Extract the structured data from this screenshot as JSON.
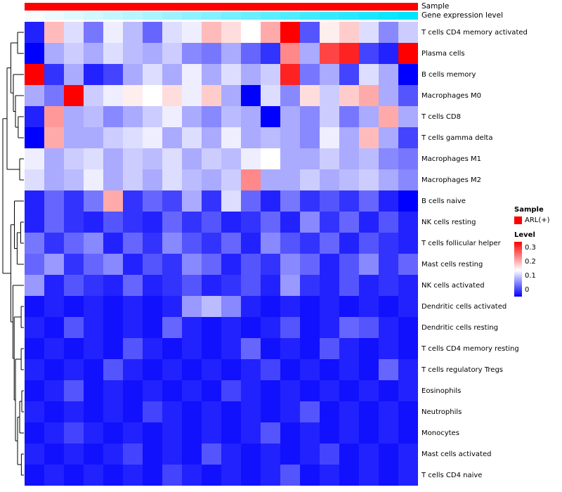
{
  "annotations": {
    "sample_label": "Sample",
    "expression_label": "Gene expression level",
    "sample_color": "#FE0000",
    "expression_low_color": "#F7FCFF",
    "expression_high_color": "#00E5FE",
    "expression_values": [
      0.0,
      0.05,
      0.1,
      0.16,
      0.21,
      0.26,
      0.32,
      0.37,
      0.42,
      0.47,
      0.53,
      0.58,
      0.63,
      0.68,
      0.74,
      0.79,
      0.84,
      0.89,
      0.95,
      1.0
    ]
  },
  "legend": {
    "sample_title": "Sample",
    "sample_items": [
      {
        "label": "ARL(+)",
        "color": "#FE0000"
      }
    ],
    "level_title": "Level",
    "level_ticks": [
      "0.3",
      "0.2",
      "0.1",
      "0"
    ]
  },
  "chart_data": {
    "type": "heatmap",
    "title": "",
    "rows": [
      "T cells CD4 memory activated",
      "Plasma cells",
      "B cells memory",
      "Macrophages M0",
      "T cells CD8",
      "T cells gamma delta",
      "Macrophages M1",
      "Macrophages M2",
      "B cells naive",
      "NK cells resting",
      "T cells follicular helper",
      "Mast cells resting",
      "NK cells activated",
      "Dendritic cells activated",
      "Dendritic cells resting",
      "T cells CD4 memory resting",
      "T cells regulatory  Tregs",
      "Eosinophils",
      "Neutrophils",
      "Monocytes",
      "Mast cells activated",
      "T cells CD4 naive"
    ],
    "n_columns": 20,
    "vmin": 0,
    "vmax": 0.3,
    "colormap": {
      "low": "#0000FE",
      "mid": "#FFFFFF",
      "high": "#FE0000"
    },
    "values": [
      [
        0.02,
        0.19,
        0.13,
        0.07,
        0.14,
        0.11,
        0.06,
        0.13,
        0.14,
        0.19,
        0.17,
        0.15,
        0.2,
        0.3,
        0.05,
        0.16,
        0.18,
        0.13,
        0.08,
        0.12
      ],
      [
        0.0,
        0.1,
        0.12,
        0.1,
        0.13,
        0.11,
        0.1,
        0.12,
        0.08,
        0.07,
        0.1,
        0.06,
        0.03,
        0.22,
        0.1,
        0.26,
        0.28,
        0.04,
        0.02,
        0.3
      ],
      [
        0.3,
        0.03,
        0.1,
        0.02,
        0.04,
        0.1,
        0.13,
        0.1,
        0.14,
        0.1,
        0.13,
        0.1,
        0.12,
        0.28,
        0.07,
        0.1,
        0.04,
        0.13,
        0.1,
        0.0
      ],
      [
        0.1,
        0.07,
        0.3,
        0.12,
        0.14,
        0.16,
        0.15,
        0.17,
        0.14,
        0.18,
        0.1,
        0.0,
        0.13,
        0.08,
        0.17,
        0.12,
        0.18,
        0.2,
        0.1,
        0.05
      ],
      [
        0.02,
        0.21,
        0.1,
        0.11,
        0.08,
        0.1,
        0.12,
        0.14,
        0.1,
        0.08,
        0.11,
        0.1,
        0.0,
        0.1,
        0.08,
        0.12,
        0.07,
        0.1,
        0.2,
        0.1
      ],
      [
        0.0,
        0.2,
        0.1,
        0.1,
        0.12,
        0.13,
        0.14,
        0.1,
        0.13,
        0.1,
        0.14,
        0.1,
        0.11,
        0.1,
        0.08,
        0.14,
        0.1,
        0.19,
        0.1,
        0.04
      ],
      [
        0.14,
        0.1,
        0.12,
        0.13,
        0.1,
        0.12,
        0.11,
        0.13,
        0.1,
        0.12,
        0.11,
        0.14,
        0.15,
        0.1,
        0.1,
        0.12,
        0.1,
        0.11,
        0.08,
        0.07
      ],
      [
        0.13,
        0.1,
        0.11,
        0.14,
        0.1,
        0.12,
        0.1,
        0.13,
        0.11,
        0.1,
        0.12,
        0.22,
        0.1,
        0.1,
        0.12,
        0.1,
        0.11,
        0.12,
        0.1,
        0.08
      ],
      [
        0.02,
        0.06,
        0.03,
        0.07,
        0.2,
        0.03,
        0.06,
        0.04,
        0.1,
        0.03,
        0.13,
        0.06,
        0.02,
        0.07,
        0.03,
        0.05,
        0.03,
        0.06,
        0.02,
        0.0
      ],
      [
        0.02,
        0.06,
        0.03,
        0.02,
        0.05,
        0.03,
        0.02,
        0.06,
        0.03,
        0.05,
        0.02,
        0.03,
        0.06,
        0.02,
        0.08,
        0.03,
        0.06,
        0.02,
        0.05,
        0.02
      ],
      [
        0.07,
        0.03,
        0.06,
        0.08,
        0.02,
        0.06,
        0.03,
        0.08,
        0.05,
        0.03,
        0.06,
        0.02,
        0.08,
        0.05,
        0.03,
        0.06,
        0.02,
        0.05,
        0.03,
        0.02
      ],
      [
        0.06,
        0.09,
        0.03,
        0.06,
        0.08,
        0.02,
        0.05,
        0.03,
        0.08,
        0.06,
        0.02,
        0.05,
        0.03,
        0.08,
        0.06,
        0.02,
        0.05,
        0.08,
        0.03,
        0.06
      ],
      [
        0.09,
        0.02,
        0.05,
        0.03,
        0.02,
        0.06,
        0.02,
        0.03,
        0.05,
        0.02,
        0.03,
        0.05,
        0.02,
        0.09,
        0.03,
        0.02,
        0.05,
        0.02,
        0.03,
        0.02
      ],
      [
        0.01,
        0.02,
        0.01,
        0.02,
        0.01,
        0.02,
        0.01,
        0.02,
        0.09,
        0.11,
        0.08,
        0.02,
        0.01,
        0.02,
        0.01,
        0.02,
        0.01,
        0.02,
        0.01,
        0.02
      ],
      [
        0.02,
        0.01,
        0.05,
        0.02,
        0.01,
        0.02,
        0.01,
        0.06,
        0.02,
        0.01,
        0.02,
        0.01,
        0.02,
        0.05,
        0.01,
        0.02,
        0.06,
        0.05,
        0.02,
        0.01
      ],
      [
        0.01,
        0.02,
        0.01,
        0.02,
        0.01,
        0.05,
        0.02,
        0.01,
        0.02,
        0.01,
        0.02,
        0.06,
        0.01,
        0.02,
        0.01,
        0.05,
        0.02,
        0.01,
        0.02,
        0.01
      ],
      [
        0.02,
        0.01,
        0.02,
        0.01,
        0.05,
        0.02,
        0.01,
        0.02,
        0.01,
        0.02,
        0.01,
        0.02,
        0.04,
        0.01,
        0.02,
        0.01,
        0.02,
        0.01,
        0.06,
        0.02
      ],
      [
        0.01,
        0.02,
        0.05,
        0.01,
        0.02,
        0.01,
        0.02,
        0.01,
        0.02,
        0.01,
        0.04,
        0.02,
        0.01,
        0.02,
        0.01,
        0.02,
        0.01,
        0.02,
        0.01,
        0.02
      ],
      [
        0.02,
        0.01,
        0.02,
        0.01,
        0.02,
        0.01,
        0.04,
        0.02,
        0.01,
        0.02,
        0.01,
        0.02,
        0.01,
        0.02,
        0.05,
        0.01,
        0.02,
        0.01,
        0.02,
        0.01
      ],
      [
        0.01,
        0.02,
        0.04,
        0.02,
        0.01,
        0.02,
        0.01,
        0.02,
        0.01,
        0.02,
        0.01,
        0.02,
        0.05,
        0.01,
        0.02,
        0.01,
        0.02,
        0.01,
        0.02,
        0.01
      ],
      [
        0.02,
        0.01,
        0.02,
        0.01,
        0.02,
        0.04,
        0.01,
        0.02,
        0.01,
        0.05,
        0.02,
        0.01,
        0.02,
        0.01,
        0.02,
        0.04,
        0.01,
        0.02,
        0.01,
        0.02
      ],
      [
        0.01,
        0.02,
        0.01,
        0.02,
        0.01,
        0.02,
        0.01,
        0.04,
        0.02,
        0.01,
        0.02,
        0.01,
        0.02,
        0.05,
        0.01,
        0.02,
        0.01,
        0.02,
        0.01,
        0.02
      ]
    ],
    "dendrogram": {
      "h": 1.0,
      "c": [
        {
          "h": 0.8,
          "c": [
            {
              "h": 0.62,
              "c": [
                {
                  "h": 0.3,
                  "c": [
                    0,
                    1
                  ]
                },
                {
                  "h": 0.5,
                  "c": [
                    2,
                    {
                      "h": 0.4,
                      "c": [
                        3,
                        {
                          "h": 0.27,
                          "c": [
                            4,
                            5
                          ]
                        }
                      ]
                    }
                  ]
                }
              ]
            },
            {
              "h": 0.2,
              "c": [
                6,
                7
              ]
            }
          ]
        },
        {
          "h": 0.62,
          "c": [
            {
              "h": 0.45,
              "c": [
                8,
                {
                  "h": 0.32,
                  "c": [
                    {
                      "h": 0.15,
                      "c": [
                        9,
                        10
                      ]
                    },
                    11
                  ]
                }
              ]
            },
            {
              "h": 0.52,
              "c": [
                12,
                {
                  "h": 0.46,
                  "c": [
                    {
                      "h": 0.13,
                      "c": [
                        13,
                        14
                      ]
                    },
                    {
                      "h": 0.4,
                      "c": [
                        {
                          "h": 0.13,
                          "c": [
                            15,
                            16
                          ]
                        },
                        {
                          "h": 0.3,
                          "c": [
                            {
                              "h": 0.2,
                              "c": [
                                {
                                  "h": 0.1,
                                  "c": [
                                    17,
                                    18
                                  ]
                                },
                                19
                              ]
                            },
                            {
                              "h": 0.12,
                              "c": [
                                20,
                                21
                              ]
                            }
                          ]
                        }
                      ]
                    }
                  ]
                }
              ]
            }
          ]
        }
      ]
    }
  }
}
